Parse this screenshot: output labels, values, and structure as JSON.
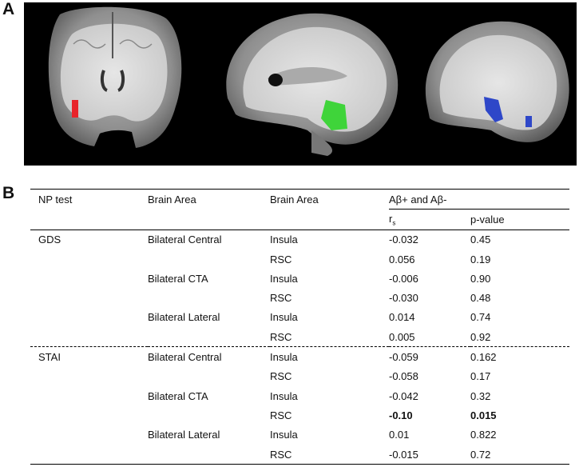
{
  "panel_a_label": "A",
  "panel_b_label": "B",
  "table": {
    "header": {
      "np_test": "NP test",
      "brain_area_1": "Brain Area",
      "brain_area_2": "Brain Area",
      "group": "Aβ+ and Aβ-",
      "rs_main": "r",
      "rs_sub": "s",
      "pvalue": "p-value"
    },
    "rows": [
      {
        "np": "GDS",
        "area1": "Bilateral Central",
        "area2": "Insula",
        "rs": "-0.032",
        "p": "0.45"
      },
      {
        "np": "",
        "area1": "",
        "area2": "RSC",
        "rs": "0.056",
        "p": "0.19"
      },
      {
        "np": "",
        "area1": "Bilateral CTA",
        "area2": "Insula",
        "rs": "-0.006",
        "p": "0.90"
      },
      {
        "np": "",
        "area1": "",
        "area2": "RSC",
        "rs": "-0.030",
        "p": "0.48"
      },
      {
        "np": "",
        "area1": "Bilateral Lateral",
        "area2": "Insula",
        "rs": "0.014",
        "p": "0.74"
      },
      {
        "np": "",
        "area1": "",
        "area2": "RSC",
        "rs": "0.005",
        "p": "0.92"
      },
      {
        "np": "STAI",
        "area1": "Bilateral Central",
        "area2": "Insula",
        "rs": "-0.059",
        "p": "0.162"
      },
      {
        "np": "",
        "area1": "",
        "area2": "RSC",
        "rs": "-0.058",
        "p": "0.17"
      },
      {
        "np": "",
        "area1": "Bilateral CTA",
        "area2": "Insula",
        "rs": "-0.042",
        "p": "0.32"
      },
      {
        "np": "",
        "area1": "",
        "area2": "RSC",
        "rs": "-0.10",
        "p": "0.015"
      },
      {
        "np": "",
        "area1": "Bilateral Lateral",
        "area2": "Insula",
        "rs": "0.01",
        "p": "0.822"
      },
      {
        "np": "",
        "area1": "",
        "area2": "RSC",
        "rs": "-0.015",
        "p": "0.72"
      }
    ]
  },
  "roi_colors": {
    "central": "#e8232a",
    "cta": "#3fd43a",
    "lateral": "#2e47c8"
  }
}
